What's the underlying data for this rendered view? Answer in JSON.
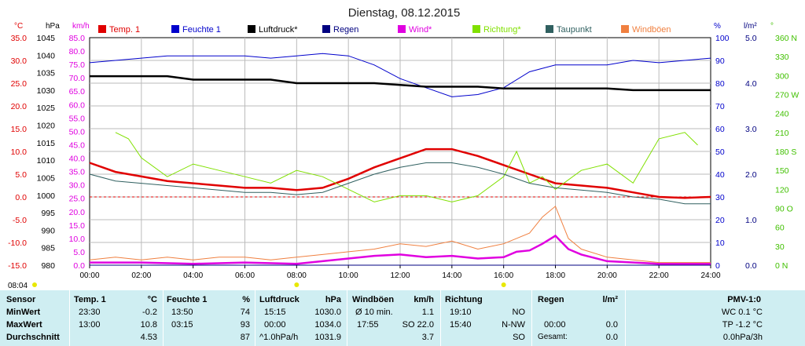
{
  "chart_data": {
    "type": "line",
    "title": "Dienstag, 08.12.2015",
    "x_ticks": [
      "00:00",
      "02:00",
      "04:00",
      "06:00",
      "08:00",
      "10:00",
      "12:00",
      "14:00",
      "16:00",
      "18:00",
      "20:00",
      "22:00",
      "24:00"
    ],
    "xlim": [
      0,
      24
    ],
    "grid": true,
    "legend_position": "top",
    "axes": {
      "temp": {
        "unit": "°C",
        "range": [
          -15,
          35
        ],
        "ticks": [
          "35.0",
          "30.0",
          "25.0",
          "20.0",
          "15.0",
          "10.0",
          "5.0",
          "0.0",
          "-5.0",
          "-10.0",
          "-15.0"
        ],
        "color": "#e00000"
      },
      "pressure": {
        "unit": "hPa",
        "range": [
          980,
          1045
        ],
        "ticks": [
          "1045",
          "1040",
          "1035",
          "1030",
          "1025",
          "1020",
          "1015",
          "1010",
          "1005",
          "1000",
          "995",
          "990",
          "985",
          "980"
        ],
        "color": "#000000"
      },
      "wind": {
        "unit": "km/h",
        "range": [
          0,
          85
        ],
        "ticks": [
          "85.0",
          "80.0",
          "75.0",
          "70.0",
          "65.0",
          "60.0",
          "55.0",
          "50.0",
          "45.0",
          "40.0",
          "35.0",
          "30.0",
          "25.0",
          "20.0",
          "15.0",
          "10.0",
          "5.0",
          "0.0"
        ],
        "color": "#e000e0"
      },
      "humidity": {
        "unit": "%",
        "range": [
          0,
          100
        ],
        "ticks": [
          "100",
          "90",
          "80",
          "70",
          "60",
          "50",
          "40",
          "30",
          "20",
          "10",
          "0"
        ],
        "color": "#0000cc"
      },
      "rain": {
        "unit": "l/m²",
        "range": [
          0,
          5
        ],
        "ticks": [
          "5.0",
          "4.0",
          "3.0",
          "2.0",
          "1.0",
          "0.0"
        ],
        "color": "#000080"
      },
      "direction": {
        "unit": "°",
        "range": [
          0,
          360
        ],
        "ticks": [
          "360 N",
          "330",
          "300",
          "270 W",
          "240",
          "210",
          "180 S",
          "150",
          "120",
          "90 O",
          "60",
          "30",
          "0 N"
        ],
        "color": "#40c000"
      }
    },
    "series": [
      {
        "name": "Temp. 1",
        "axis": "temp",
        "color": "#e00000",
        "x": [
          0,
          1,
          2,
          3,
          4,
          5,
          6,
          7,
          8,
          9,
          10,
          11,
          12,
          13,
          14,
          15,
          16,
          17,
          18,
          19,
          20,
          21,
          22,
          23,
          24
        ],
        "y": [
          7.5,
          5.5,
          4.5,
          3.5,
          3,
          2.5,
          2,
          2,
          1.5,
          2,
          4,
          6.5,
          8.5,
          10.5,
          10.5,
          9,
          7,
          5,
          3,
          2.5,
          2,
          1,
          0,
          -0.2,
          0
        ]
      },
      {
        "name": "Feuchte 1",
        "axis": "humidity",
        "color": "#0000cc",
        "x": [
          0,
          1,
          2,
          3,
          4,
          5,
          6,
          7,
          8,
          9,
          10,
          11,
          12,
          13,
          14,
          15,
          16,
          17,
          18,
          19,
          20,
          21,
          22,
          23,
          24
        ],
        "y": [
          89,
          90,
          91,
          92,
          92,
          92,
          92,
          91,
          92,
          93,
          92,
          88,
          82,
          78,
          74,
          75,
          78,
          85,
          88,
          88,
          88,
          90,
          89,
          90,
          91
        ]
      },
      {
        "name": "Luftdruck*",
        "axis": "pressure",
        "color": "#000000",
        "x": [
          0,
          1,
          2,
          3,
          4,
          5,
          6,
          7,
          8,
          9,
          10,
          11,
          12,
          13,
          14,
          15,
          16,
          17,
          18,
          19,
          20,
          21,
          22,
          23,
          24
        ],
        "y": [
          1034,
          1034,
          1034,
          1034,
          1033,
          1033,
          1033,
          1033,
          1032,
          1032,
          1032,
          1032,
          1031.5,
          1031,
          1031,
          1031,
          1030.5,
          1030.5,
          1030.5,
          1030.5,
          1030.5,
          1030,
          1030,
          1030,
          1030
        ]
      },
      {
        "name": "Regen",
        "axis": "rain",
        "color": "#000080",
        "x": [
          0,
          24
        ],
        "y": [
          0,
          0
        ]
      },
      {
        "name": "Wind*",
        "axis": "wind",
        "color": "#e000e0",
        "x": [
          0,
          2,
          4,
          6,
          8,
          9,
          10,
          11,
          12,
          13,
          14,
          15,
          16,
          16.5,
          17,
          17.5,
          18,
          18.5,
          19,
          20,
          22,
          24
        ],
        "y": [
          1,
          1,
          0.5,
          1,
          0.5,
          1.5,
          2.5,
          3.5,
          4,
          3,
          3.5,
          2.5,
          3,
          5,
          5.5,
          8,
          11,
          6,
          4,
          1.5,
          0.5,
          0.5
        ]
      },
      {
        "name": "Richtung*",
        "axis": "direction",
        "color": "#80e000",
        "x": [
          1,
          1.5,
          2,
          3,
          4,
          5,
          6,
          7,
          8,
          9,
          10,
          11,
          12,
          13,
          14,
          15,
          16,
          16.5,
          17,
          17.5,
          18,
          19,
          20,
          21,
          22,
          23,
          23.5
        ],
        "y": [
          210,
          200,
          170,
          140,
          160,
          150,
          140,
          130,
          150,
          140,
          120,
          100,
          110,
          110,
          100,
          110,
          140,
          180,
          130,
          140,
          120,
          150,
          160,
          130,
          200,
          210,
          190
        ]
      },
      {
        "name": "Taupunkt",
        "axis": "temp",
        "color": "#306060",
        "x": [
          0,
          1,
          2,
          3,
          4,
          5,
          6,
          7,
          8,
          9,
          10,
          11,
          12,
          13,
          14,
          15,
          16,
          17,
          18,
          19,
          20,
          21,
          22,
          23,
          24
        ],
        "y": [
          5,
          3.5,
          3,
          2.5,
          2,
          1.5,
          1,
          1,
          0.5,
          1,
          3,
          5,
          6.5,
          7.5,
          7.5,
          6.5,
          5,
          3,
          2,
          1.5,
          1,
          0,
          -0.5,
          -1.5,
          -1.5
        ]
      },
      {
        "name": "Windböen",
        "axis": "wind",
        "color": "#f08040",
        "x": [
          0,
          1,
          2,
          3,
          4,
          5,
          6,
          7,
          8,
          9,
          10,
          11,
          12,
          13,
          14,
          15,
          16,
          17,
          17.5,
          18,
          18.5,
          19,
          20,
          21,
          22,
          23,
          24
        ],
        "y": [
          2,
          3,
          2,
          3,
          2,
          3,
          3,
          2,
          3,
          4,
          5,
          6,
          8,
          7,
          9,
          6,
          8,
          12,
          18,
          22,
          10,
          6,
          3,
          2,
          1,
          1,
          1
        ]
      }
    ]
  },
  "header_time": "08:04",
  "stats": {
    "rows": [
      "Sensor",
      "MinWert",
      "MaxWert",
      "Durchschnitt"
    ],
    "temp": {
      "title": "Temp. 1",
      "unit": "°C",
      "min_time": "23:30",
      "min_val": "-0.2",
      "max_time": "13:00",
      "max_val": "10.8",
      "avg": "4.53"
    },
    "hum": {
      "title": "Feuchte 1",
      "unit": "%",
      "min_time": "13:50",
      "min_val": "74",
      "max_time": "03:15",
      "max_val": "93",
      "avg": "87"
    },
    "press": {
      "title": "Luftdruck",
      "unit": "hPa",
      "min_time": "15:15",
      "min_val": "1030.0",
      "max_time": "00:00",
      "max_val": "1034.0",
      "avg_label": "^1.0hPa/h",
      "avg": "1031.9"
    },
    "wind": {
      "title": "Windböen",
      "unit": "km/h",
      "min_time": "Ø 10 min.",
      "min_val": "1.1",
      "max_time": "17:55",
      "max_val": "SO 22.0",
      "avg": "3.7"
    },
    "dir": {
      "title": "Richtung",
      "min_time": "19:10",
      "min_val": "NO",
      "max_time": "15:40",
      "max_val": "N-NW",
      "avg": "SO"
    },
    "rain": {
      "title": "Regen",
      "unit": "l/m²",
      "max_time": "00:00",
      "max_val": "0.0",
      "avg_label": "Gesamt:",
      "avg": "0.0"
    },
    "pmv": {
      "title": "PMV-1:0",
      "min_val": "WC 0.1 °C",
      "max_val": "TP -1.2 °C",
      "avg": "0.0hPa/3h"
    }
  }
}
